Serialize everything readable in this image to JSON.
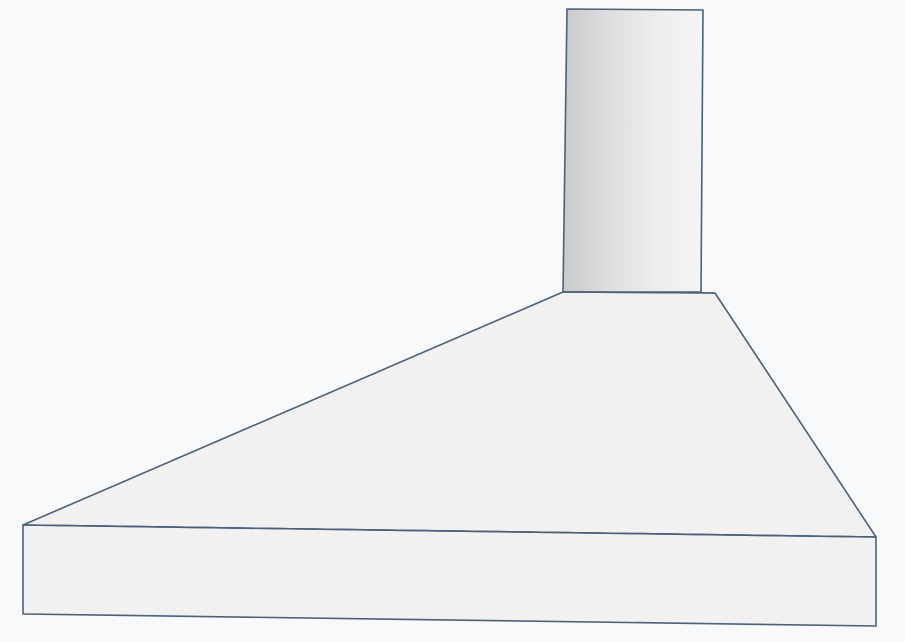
{
  "scene": {
    "background_color": "#f8f9fa",
    "outline_color": "#4a6178",
    "flat_face_color": "#f1f1f2",
    "chimney_dark_color": "#c9cacb",
    "chimney_light_color": "#f4f4f5"
  },
  "object": {
    "parts": [
      "chimney-duct",
      "hood-canopy",
      "hood-base"
    ]
  }
}
